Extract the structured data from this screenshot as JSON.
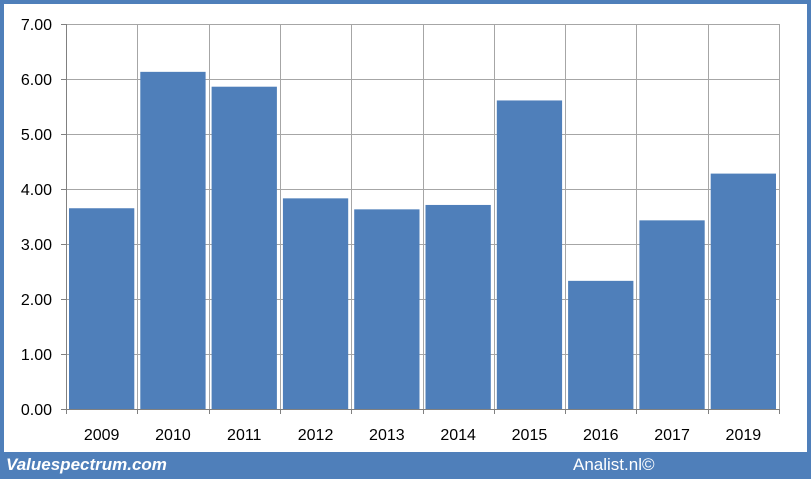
{
  "chart_data": {
    "type": "bar",
    "categories": [
      "2009",
      "2010",
      "2011",
      "2012",
      "2013",
      "2014",
      "2015",
      "2016",
      "2017",
      "2019"
    ],
    "values": [
      3.65,
      6.13,
      5.86,
      3.83,
      3.63,
      3.71,
      5.61,
      2.33,
      3.43,
      4.28
    ],
    "ylim": [
      0,
      7
    ],
    "yticks": [
      "0.00",
      "1.00",
      "2.00",
      "3.00",
      "4.00",
      "5.00",
      "6.00",
      "7.00"
    ],
    "grid": true,
    "bar_color": "#4f7fba",
    "title": "",
    "xlabel": "",
    "ylabel": ""
  },
  "footer": {
    "left_text": "Valuespectrum.com",
    "right_text": "Analist.nl©"
  },
  "colors": {
    "frame": "#4f7fba",
    "grid": "#a6a6a6",
    "axis": "#808080"
  }
}
